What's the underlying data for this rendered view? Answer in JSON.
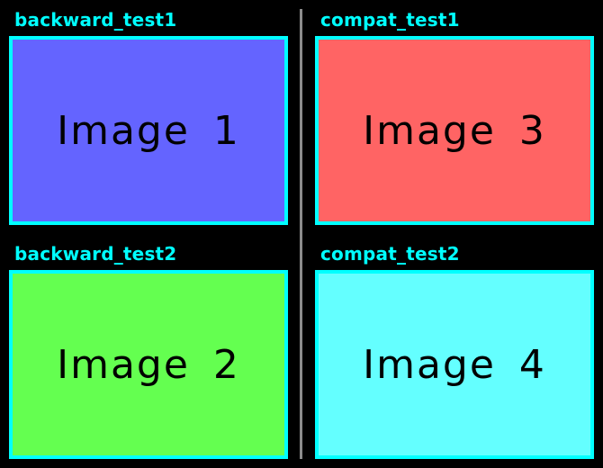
{
  "panels": [
    {
      "label": "backward_test1",
      "image_text": "Image 1",
      "fill_color": "#6464ff"
    },
    {
      "label": "compat_test1",
      "image_text": "Image 3",
      "fill_color": "#ff6464"
    },
    {
      "label": "backward_test2",
      "image_text": "Image 2",
      "fill_color": "#64ff50"
    },
    {
      "label": "compat_test2",
      "image_text": "Image 4",
      "fill_color": "#64ffff"
    }
  ],
  "colors": {
    "background": "#000000",
    "label_text": "#00ffff",
    "tile_border": "#00ffff",
    "divider": "#8c8c8c",
    "image_text": "#000000"
  }
}
